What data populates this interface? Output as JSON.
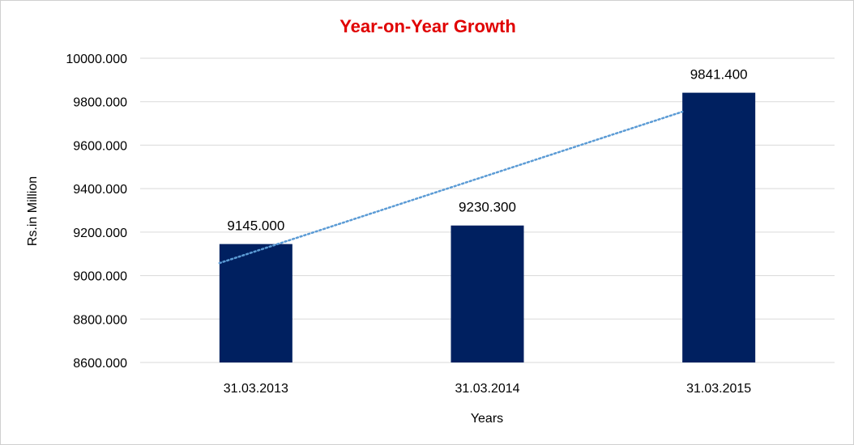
{
  "chart_data": {
    "type": "bar",
    "title": "Year-on-Year Growth",
    "xlabel": "Years",
    "ylabel": "Rs.in Million",
    "categories": [
      "31.03.2013",
      "31.03.2014",
      "31.03.2015"
    ],
    "values": [
      9145.0,
      9230.3,
      9841.4
    ],
    "data_labels": [
      "9145.000",
      "9230.300",
      "9841.400"
    ],
    "ylim": [
      8600,
      10000
    ],
    "yticks": [
      8600,
      8800,
      9000,
      9200,
      9400,
      9600,
      9800,
      10000
    ],
    "ytick_labels": [
      "8600.000",
      "8800.000",
      "9000.000",
      "9200.000",
      "9400.000",
      "9600.000",
      "9800.000",
      "10000.000"
    ],
    "grid": true,
    "trendline": {
      "type": "linear",
      "style": "dotted"
    },
    "colors": {
      "bar": "#002060",
      "title": "#e00000",
      "trend": "#5b9bd5",
      "grid": "#d9d9d9"
    }
  }
}
